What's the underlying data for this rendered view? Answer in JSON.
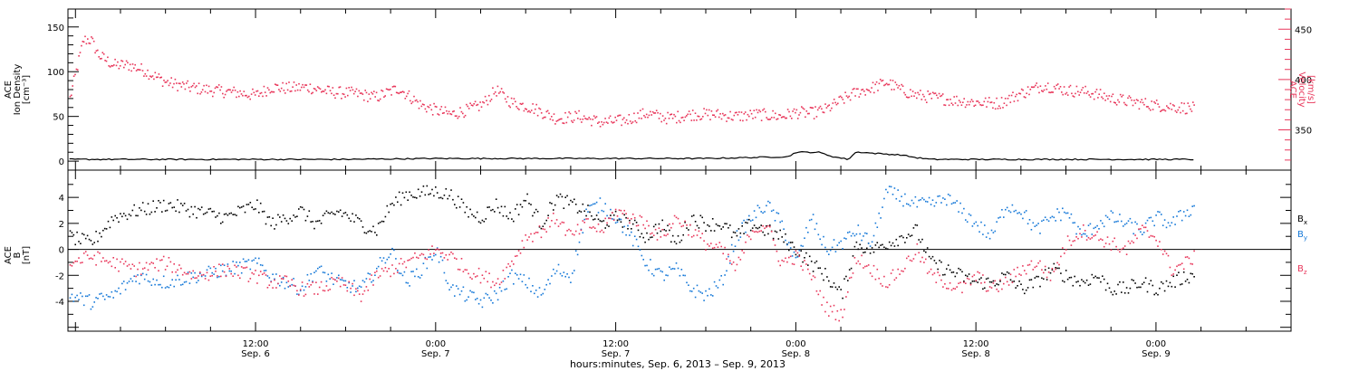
{
  "figure": {
    "xaxis_title": "hours:minutes, Sep.  6, 2013 – Sep.  9, 2013",
    "x_ticks": [
      {
        "hour": 12,
        "time": "12:00",
        "date": "Sep. 6"
      },
      {
        "hour": 24,
        "time": "0:00",
        "date": "Sep. 7"
      },
      {
        "hour": 36,
        "time": "12:00",
        "date": "Sep. 7"
      },
      {
        "hour": 48,
        "time": "0:00",
        "date": "Sep. 8"
      },
      {
        "hour": 60,
        "time": "12:00",
        "date": "Sep. 8"
      },
      {
        "hour": 72,
        "time": "0:00",
        "date": "Sep. 9"
      }
    ]
  },
  "colors": {
    "velocity": "#e8365a",
    "density": "#000000",
    "bx": "#000000",
    "by": "#1478d8",
    "bz": "#e8365a",
    "axes": "#000000"
  },
  "chart_data": [
    {
      "type": "scatter",
      "title": "",
      "x_units": "hours from Sep. 6, 2013 00:00 UT",
      "xlim": [
        -0.5,
        81.0
      ],
      "left_axis": {
        "label": [
          "ACE",
          "Ion Density",
          "[cm⁻³]"
        ],
        "ylim": [
          -10,
          170
        ],
        "ticks": [
          0,
          50,
          100,
          150
        ]
      },
      "right_axis": {
        "label": [
          "ACE",
          "Velocity",
          "[km/s]"
        ],
        "ylim": [
          310,
          470
        ],
        "ticks": [
          350,
          400,
          450
        ],
        "color": "#e8365a"
      },
      "series": [
        {
          "axis": "right",
          "color": "#e8365a",
          "style": "dots",
          "x": [
            -0.4,
            0.5,
            1,
            1.5,
            2.5,
            3.5,
            4.5,
            6,
            7.5,
            9,
            10.5,
            12,
            13,
            14,
            15.5,
            17,
            18.5,
            20,
            21.5,
            23,
            24,
            25,
            26,
            27,
            28,
            29,
            30.5,
            32,
            33.5,
            35,
            36.5,
            38,
            39.5,
            41,
            42.5,
            44,
            45.5,
            47,
            48,
            49,
            50,
            51,
            52,
            53,
            54,
            55,
            56,
            57,
            58.5,
            60,
            61.5,
            63,
            64.5,
            66,
            67.5,
            69,
            70.5,
            72,
            73.5,
            74.5
          ],
          "y": [
            382,
            440,
            440,
            425,
            415,
            415,
            410,
            398,
            393,
            390,
            388,
            385,
            393,
            392,
            393,
            388,
            387,
            383,
            392,
            375,
            370,
            366,
            370,
            375,
            390,
            378,
            372,
            362,
            364,
            358,
            360,
            367,
            362,
            366,
            366,
            364,
            366,
            364,
            368,
            367,
            371,
            380,
            388,
            392,
            398,
            390,
            385,
            383,
            380,
            378,
            377,
            387,
            395,
            390,
            388,
            382,
            378,
            375,
            373,
            372
          ]
        },
        {
          "axis": "left",
          "color": "#000000",
          "style": "line",
          "x": [
            -0.4,
            6,
            12,
            18,
            24,
            30,
            36,
            42,
            47.5,
            48,
            48.5,
            49.5,
            50.5,
            51.5,
            52,
            52.5,
            53,
            54,
            55,
            56,
            56.5,
            57,
            62,
            68,
            74.5
          ],
          "y": [
            2,
            2,
            2,
            2,
            3,
            3,
            3,
            3,
            5,
            10,
            10,
            10,
            5,
            2,
            10,
            10,
            9,
            8,
            7,
            4,
            3,
            2,
            2,
            2,
            2
          ]
        }
      ]
    },
    {
      "type": "scatter",
      "title": "",
      "x_units": "hours from Sep. 6, 2013 00:00 UT",
      "xlim": [
        -0.5,
        81.0
      ],
      "ylim": [
        -6.3,
        6.1
      ],
      "yticks": [
        -4,
        -2,
        0,
        2,
        4
      ],
      "ylabel": [
        "ACE",
        "B",
        "[nT]"
      ],
      "zero_line": true,
      "series": [
        {
          "name": "Bx",
          "color": "#000000",
          "x": [
            -0.4,
            1,
            2.5,
            4,
            6,
            8,
            10,
            12,
            13,
            14,
            15,
            16,
            17.5,
            19,
            20,
            21,
            22,
            23,
            24,
            25,
            26,
            27,
            28,
            29,
            30,
            31,
            32,
            33,
            34,
            35,
            36,
            37,
            38,
            39,
            40,
            41,
            42,
            43,
            44,
            45,
            46,
            47,
            48,
            49,
            50,
            51,
            52,
            53,
            54,
            55,
            56,
            57,
            58,
            59,
            60,
            61,
            62,
            63,
            64,
            65,
            66,
            67,
            68,
            69,
            70,
            71,
            72,
            73,
            74,
            74.5
          ],
          "y": [
            1.0,
            0.5,
            2.5,
            3.0,
            3.5,
            3.0,
            2.5,
            3.5,
            2.0,
            2.5,
            3.0,
            2.0,
            3.0,
            2.0,
            1.5,
            3.5,
            4.3,
            4.4,
            4.5,
            4.2,
            3.0,
            2.5,
            3.5,
            2.5,
            4.0,
            2.0,
            4.0,
            3.5,
            3.0,
            2.0,
            2.5,
            2.0,
            1.0,
            2.0,
            0.5,
            2.5,
            2.0,
            2.0,
            1.0,
            2.0,
            1.5,
            1.0,
            0.0,
            -1.0,
            -2.0,
            -3.5,
            0.5,
            0.0,
            0.5,
            1.0,
            1.5,
            -1.0,
            -1.5,
            -2.0,
            -2.5,
            -2.5,
            -2.0,
            -3.0,
            -2.5,
            -1.5,
            -2.0,
            -2.5,
            -2.0,
            -3.0,
            -3.0,
            -2.5,
            -3.0,
            -2.5,
            -2.0,
            -2.0
          ]
        },
        {
          "name": "By",
          "color": "#1478d8",
          "x": [
            -0.4,
            1,
            2.5,
            4,
            6,
            8,
            10,
            12,
            13,
            14,
            15,
            16,
            17.5,
            19,
            20,
            21,
            22,
            23,
            24,
            25,
            26,
            27,
            28,
            29,
            30,
            31,
            32,
            33,
            34,
            35,
            36,
            37,
            38,
            39,
            40,
            41,
            42,
            43,
            44,
            45,
            46,
            47,
            48,
            49,
            50,
            51,
            52,
            53,
            54,
            55,
            56,
            57,
            58,
            59,
            60,
            61,
            62,
            63,
            64,
            65,
            66,
            67,
            68,
            69,
            70,
            71,
            72,
            73,
            74,
            74.5
          ],
          "y": [
            -3.5,
            -4.0,
            -3.5,
            -2.0,
            -2.5,
            -2.0,
            -1.5,
            -1.0,
            -2.0,
            -2.5,
            -3.0,
            -1.5,
            -2.5,
            -3.0,
            -1.5,
            0.0,
            -2.5,
            -1.5,
            0.0,
            -3.0,
            -3.5,
            -4.0,
            -3.5,
            -2.0,
            -2.5,
            -3.5,
            -1.5,
            -2.0,
            3.0,
            3.5,
            2.5,
            1.0,
            -1.0,
            -2.0,
            -1.5,
            -3.0,
            -3.5,
            -2.5,
            1.0,
            2.5,
            3.5,
            2.0,
            -1.0,
            2.5,
            0.0,
            0.5,
            1.5,
            0.5,
            4.5,
            4.0,
            3.5,
            3.5,
            4.0,
            3.0,
            2.0,
            1.0,
            3.5,
            3.0,
            1.5,
            2.5,
            3.0,
            1.0,
            2.0,
            2.5,
            2.0,
            1.5,
            2.5,
            2.0,
            3.0,
            3.2
          ]
        },
        {
          "name": "Bz",
          "color": "#e8365a",
          "x": [
            -0.4,
            1,
            2.5,
            4,
            6,
            8,
            10,
            12,
            13,
            14,
            15,
            16,
            17.5,
            19,
            20,
            21,
            22,
            23,
            24,
            25,
            26,
            27,
            28,
            29,
            30,
            31,
            32,
            33,
            34,
            35,
            36,
            37,
            38,
            39,
            40,
            41,
            42,
            43,
            44,
            45,
            46,
            47,
            48,
            49,
            50,
            51,
            52,
            53,
            54,
            55,
            56,
            57,
            58,
            59,
            60,
            61,
            62,
            63,
            64,
            65,
            66,
            67,
            68,
            69,
            70,
            71,
            72,
            73,
            74,
            74.5
          ],
          "y": [
            -1.0,
            -0.5,
            -1.0,
            -1.5,
            -1.0,
            -2.0,
            -1.5,
            -2.0,
            -2.5,
            -2.5,
            -3.0,
            -3.0,
            -2.5,
            -3.5,
            -2.0,
            -1.5,
            -1.0,
            -0.5,
            0.0,
            -0.5,
            -1.5,
            -2.0,
            -2.5,
            -1.0,
            1.0,
            1.5,
            2.5,
            1.0,
            2.0,
            1.5,
            3.0,
            2.5,
            2.0,
            1.0,
            2.5,
            1.5,
            0.5,
            0.0,
            -1.5,
            1.5,
            2.0,
            -1.0,
            -0.5,
            -2.0,
            -4.5,
            -5.0,
            -0.5,
            -1.5,
            -2.5,
            -1.5,
            0.0,
            -2.0,
            -2.5,
            -3.0,
            -2.0,
            -3.0,
            -2.5,
            -1.5,
            -1.0,
            -2.0,
            0.5,
            1.5,
            1.0,
            0.5,
            0.0,
            1.5,
            1.0,
            -1.5,
            -1.0,
            -0.5
          ]
        }
      ]
    }
  ]
}
